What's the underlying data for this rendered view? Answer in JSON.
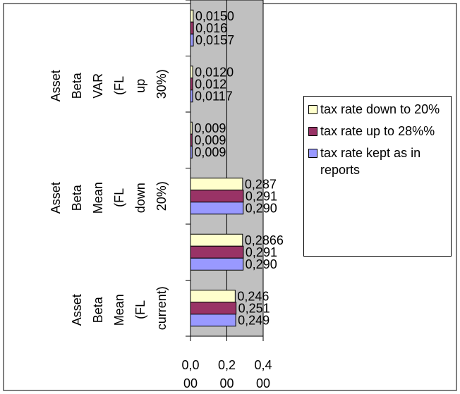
{
  "chart_data": {
    "type": "bar",
    "orientation": "horizontal",
    "categories": [
      "Asset Beta Mean (FL current)",
      null,
      "Asset Beta Mean (FL down 20%)",
      null,
      "Asset Beta VAR (FL up 30%)",
      null
    ],
    "series": [
      {
        "name": "tax rate down to 20%",
        "color": "#ffffcc",
        "values": [
          0.246,
          0.2866,
          0.287,
          0.009,
          0.012,
          0.015
        ],
        "value_labels": [
          "0,246",
          "0,2866",
          "0,287",
          "0,009",
          "0,0120",
          "0,0150"
        ]
      },
      {
        "name": "tax rate up to 28%%",
        "color": "#993366",
        "values": [
          0.251,
          0.291,
          0.291,
          0.009,
          0.012,
          0.016
        ],
        "value_labels": [
          "0,251",
          "0,291",
          "0,291",
          "0,009",
          "0,012",
          "0,016"
        ]
      },
      {
        "name": "tax rate kept as in reports",
        "color": "#9999ff",
        "values": [
          0.249,
          0.29,
          0.29,
          0.009,
          0.0117,
          0.0157
        ],
        "value_labels": [
          "0,249",
          "0,290",
          "0,290",
          "0,009",
          "0,0117",
          "0,0157"
        ]
      }
    ],
    "xlim": [
      0,
      0.4
    ],
    "xticks": [
      {
        "value": 0,
        "label": "0,000"
      },
      {
        "value": 0.2,
        "label": "0,200"
      },
      {
        "value": 0.4,
        "label": "0,400"
      }
    ],
    "grid": true,
    "legend": "right",
    "plot_background": "#c0c0c0"
  }
}
